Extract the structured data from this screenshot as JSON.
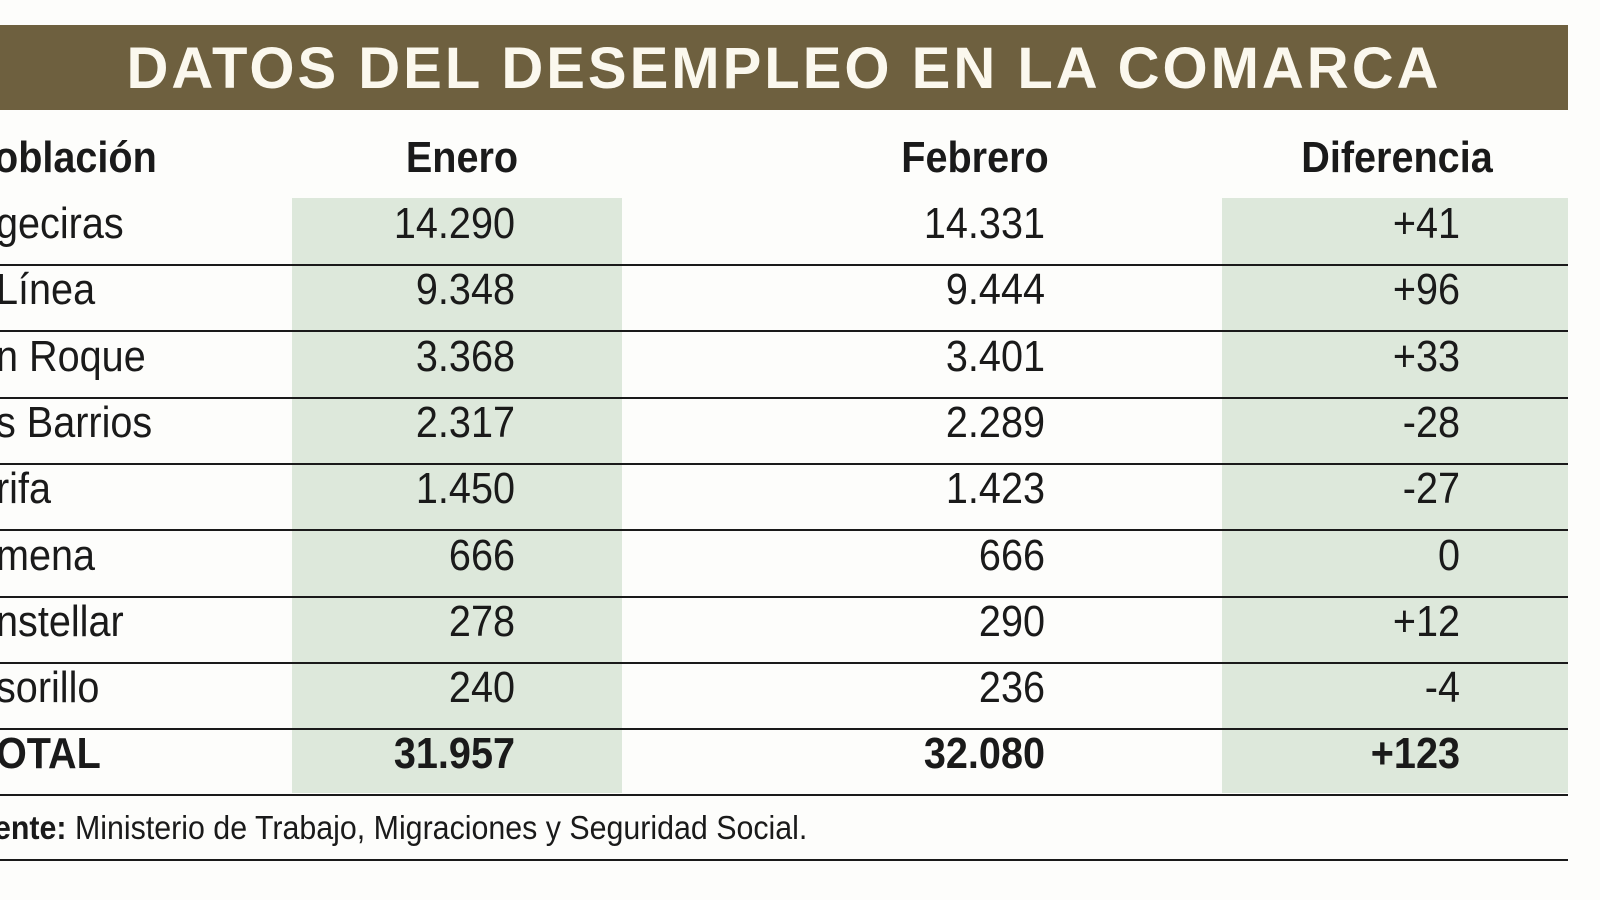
{
  "title": "DATOS DEL DESEMPLEO EN LA COMARCA",
  "colors": {
    "header_band": "#6e603f",
    "highlight_column": "#dde8db",
    "title_text": "#fbf8ee"
  },
  "chart_data": {
    "type": "table",
    "columns": [
      "oblación",
      "Enero",
      "Febrero",
      "Diferencia"
    ],
    "rows": [
      {
        "name": "geciras",
        "enero": "14.290",
        "febrero": "14.331",
        "diferencia": "+41"
      },
      {
        "name": "Línea",
        "enero": "9.348",
        "febrero": "9.444",
        "diferencia": "+96"
      },
      {
        "name": "n Roque",
        "enero": "3.368",
        "febrero": "3.401",
        "diferencia": "+33"
      },
      {
        "name": "s Barrios",
        "enero": "2.317",
        "febrero": "2.289",
        "diferencia": "-28"
      },
      {
        "name": "rifa",
        "enero": "1.450",
        "febrero": "1.423",
        "diferencia": "-27"
      },
      {
        "name": "mena",
        "enero": "666",
        "febrero": "666",
        "diferencia": "0"
      },
      {
        "name": "nstellar",
        "enero": "278",
        "febrero": "290",
        "diferencia": "+12"
      },
      {
        "name": "sorillo",
        "enero": "240",
        "febrero": "236",
        "diferencia": "-4"
      }
    ],
    "total": {
      "name": "OTAL",
      "enero": "31.957",
      "febrero": "32.080",
      "diferencia": "+123"
    }
  },
  "source": {
    "label": "ente:",
    "text": " Ministerio de Trabajo, Migraciones y Seguridad Social."
  }
}
